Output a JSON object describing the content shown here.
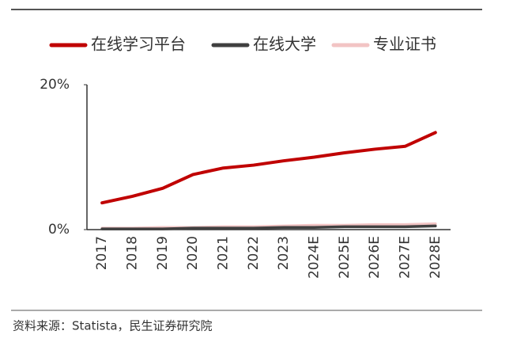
{
  "chart_data": {
    "type": "line",
    "categories": [
      "2017",
      "2018",
      "2019",
      "2020",
      "2021",
      "2022",
      "2023",
      "2024E",
      "2025E",
      "2026E",
      "2027E",
      "2028E"
    ],
    "series": [
      {
        "name": "在线学习平台",
        "color": "#c00000",
        "values": [
          3.7,
          4.6,
          5.7,
          7.6,
          8.5,
          8.9,
          9.5,
          10.0,
          10.6,
          11.1,
          11.5,
          13.4
        ]
      },
      {
        "name": "在线大学",
        "color": "#404040",
        "values": [
          0.1,
          0.1,
          0.1,
          0.2,
          0.2,
          0.2,
          0.3,
          0.3,
          0.4,
          0.4,
          0.4,
          0.5
        ]
      },
      {
        "name": "专业证书",
        "color": "#f2c4c4",
        "values": [
          0.2,
          0.2,
          0.3,
          0.3,
          0.4,
          0.4,
          0.5,
          0.6,
          0.6,
          0.7,
          0.7,
          0.8
        ]
      }
    ],
    "ylim": [
      0,
      20
    ],
    "yticks": [
      {
        "value": 0,
        "label": "0%"
      },
      {
        "value": 20,
        "label": "20%"
      }
    ],
    "legend": "top",
    "source": "资料来源：Statista，民生证券研究院"
  }
}
